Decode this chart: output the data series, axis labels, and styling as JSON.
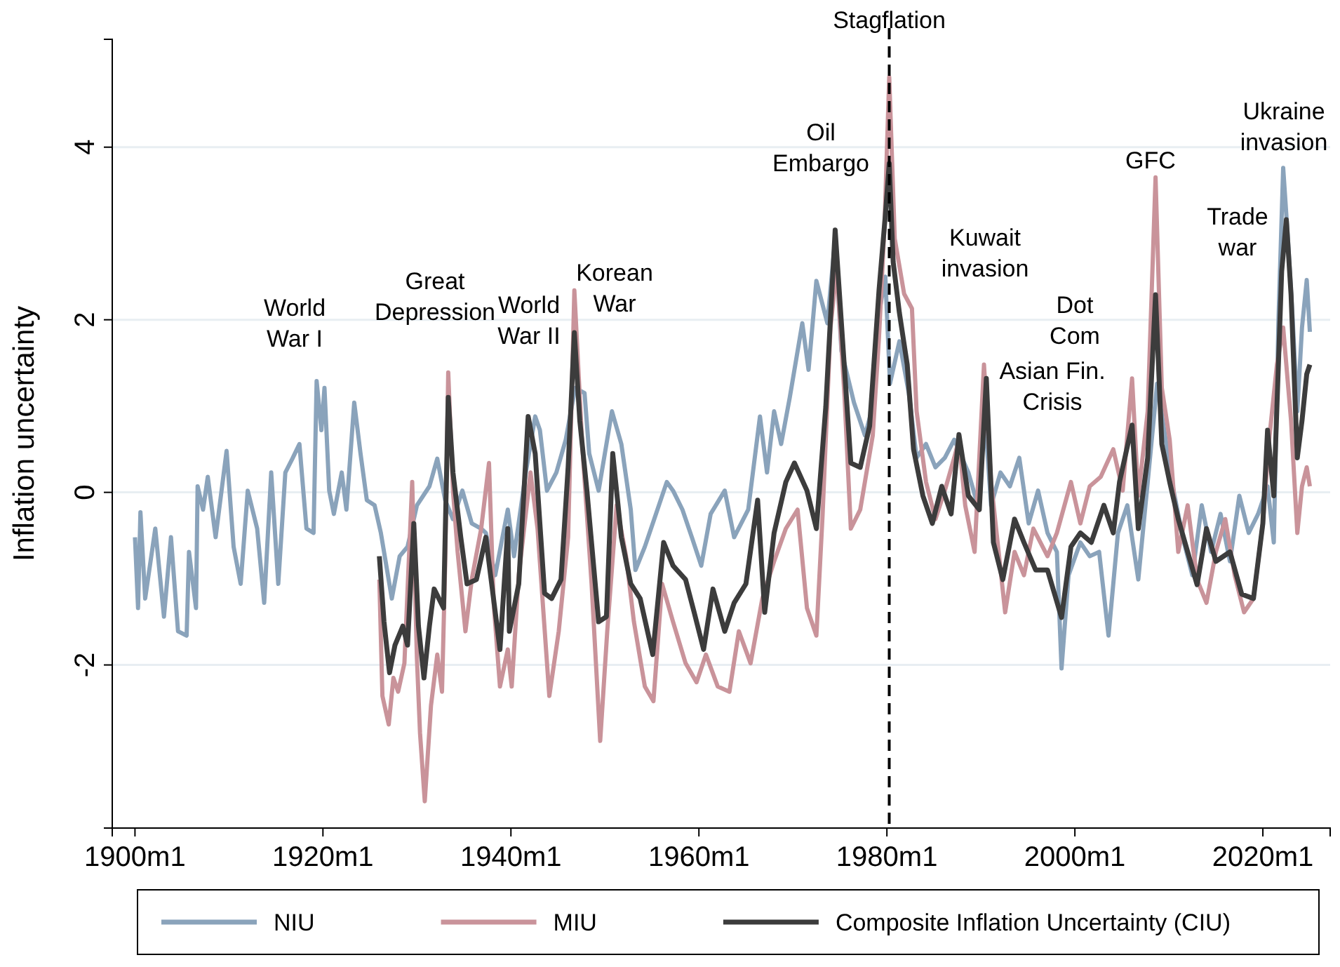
{
  "chart_data": {
    "type": "line",
    "ylabel": "Inflation uncertainty",
    "xlim": [
      "1897-08",
      "2027-03"
    ],
    "ylim": [
      -3.89,
      5.25
    ],
    "xticks": [
      {
        "value": "1900-01",
        "label": "1900m1"
      },
      {
        "value": "1920-01",
        "label": "1920m1"
      },
      {
        "value": "1940-01",
        "label": "1940m1"
      },
      {
        "value": "1960-01",
        "label": "1960m1"
      },
      {
        "value": "1980-01",
        "label": "1980m1"
      },
      {
        "value": "2000-01",
        "label": "2000m1"
      },
      {
        "value": "2020-01",
        "label": "2020m1"
      }
    ],
    "yticks": [
      -2,
      0,
      2,
      4
    ],
    "grid": "y",
    "legend": "bottom",
    "line_style": "solid",
    "marker": "none",
    "ref_lines": [
      {
        "axis": "x",
        "value": "1980-04",
        "label": "Stagflation",
        "color": "#000000",
        "line_style": "dashed"
      }
    ],
    "annotations": [
      "World\nWar I",
      "Great\nDepression",
      "World\nWar II",
      "Korean\nWar",
      "Oil\nEmbargo",
      "Kuwait\ninvasion",
      "Dot\nCom",
      "Asian Fin.\nCrisis",
      "GFC",
      "Trade\nwar",
      "Ukraine\ninvasion"
    ],
    "series": [
      {
        "name": "NIU",
        "color": "#8aa3bb",
        "x": [
          "1900-01",
          "1900-05",
          "1900-08",
          "1901-02",
          "1902-03",
          "1903-02",
          "1903-11",
          "1904-08",
          "1905-07",
          "1905-10",
          "1906-07",
          "1906-09",
          "1907-04",
          "1907-10",
          "1908-08",
          "1909-10",
          "1910-07",
          "1911-04",
          "1912-01",
          "1913-01",
          "1913-10",
          "1914-07",
          "1915-04",
          "1916-01",
          "1916-10",
          "1917-07",
          "1918-04",
          "1919-01",
          "1919-05",
          "1919-11",
          "1920-03",
          "1920-09",
          "1921-03",
          "1922-01",
          "1922-07",
          "1923-05",
          "1924-01",
          "1924-09",
          "1925-07",
          "1926-03",
          "1927-05",
          "1928-03",
          "1929-01",
          "1930-01",
          "1931-05",
          "1932-03",
          "1933-01",
          "1933-11",
          "1934-11",
          "1935-11",
          "1936-11",
          "1937-05",
          "1938-05",
          "1939-09",
          "1940-05",
          "1941-08",
          "1942-08",
          "1943-02",
          "1943-11",
          "1944-11",
          "1945-11",
          "1946-11",
          "1947-11",
          "1948-05",
          "1949-05",
          "1950-10",
          "1951-10",
          "1952-10",
          "1953-04",
          "1954-04",
          "1955-04",
          "1956-08",
          "1957-04",
          "1958-04",
          "1959-04",
          "1960-04",
          "1961-04",
          "1962-10",
          "1963-10",
          "1965-04",
          "1966-07",
          "1967-04",
          "1968-01",
          "1968-10",
          "1969-09",
          "1971-01",
          "1971-09",
          "1972-07",
          "1973-09",
          "1974-07",
          "1975-03",
          "1976-07",
          "1977-09",
          "1978-07",
          "1979-03",
          "1979-11",
          "1980-05",
          "1981-05",
          "1982-05",
          "1983-03",
          "1984-03",
          "1985-03",
          "1986-03",
          "1987-03",
          "1988-09",
          "1989-09",
          "1990-05",
          "1991-02",
          "1992-02",
          "1993-02",
          "1994-02",
          "1995-02",
          "1996-02",
          "1997-02",
          "1998-02",
          "1998-08",
          "1999-05",
          "2000-08",
          "2001-08",
          "2002-08",
          "2003-08",
          "2004-08",
          "2005-08",
          "2006-10",
          "2007-10",
          "2008-10",
          "2009-08",
          "2010-07",
          "2011-07",
          "2012-07",
          "2013-07",
          "2014-07",
          "2015-07",
          "2016-07",
          "2017-07",
          "2018-07",
          "2019-07",
          "2020-07",
          "2021-03",
          "2021-09",
          "2022-03",
          "2022-09",
          "2023-03",
          "2023-09",
          "2024-03",
          "2024-09",
          "2025-01"
        ],
        "values": [
          -0.52,
          -1.34,
          -0.23,
          -1.23,
          -0.42,
          -1.44,
          -0.52,
          -1.61,
          -1.66,
          -0.69,
          -1.34,
          0.07,
          -0.2,
          0.18,
          -0.52,
          0.48,
          -0.63,
          -1.06,
          0.02,
          -0.42,
          -1.28,
          0.23,
          -1.06,
          0.23,
          0.39,
          0.56,
          -0.42,
          -0.47,
          1.29,
          0.72,
          1.21,
          0.02,
          -0.25,
          0.23,
          -0.2,
          1.04,
          0.45,
          -0.09,
          -0.15,
          -0.47,
          -1.23,
          -0.74,
          -0.63,
          -0.15,
          0.07,
          0.39,
          -0.09,
          -0.31,
          0.02,
          -0.36,
          -0.42,
          -0.47,
          -0.96,
          -0.2,
          -0.74,
          0.23,
          0.88,
          0.72,
          0.02,
          0.23,
          0.61,
          1.21,
          1.15,
          0.45,
          0.02,
          0.94,
          0.56,
          -0.2,
          -0.9,
          -0.63,
          -0.31,
          0.12,
          0.02,
          -0.2,
          -0.52,
          -0.85,
          -0.25,
          0.02,
          -0.52,
          -0.2,
          0.88,
          0.23,
          0.94,
          0.56,
          1.1,
          1.96,
          1.42,
          2.45,
          1.96,
          2.94,
          1.64,
          1.04,
          0.66,
          0.99,
          2.07,
          2.5,
          1.26,
          1.75,
          1.15,
          0.4,
          0.56,
          0.29,
          0.4,
          0.61,
          0.23,
          -0.15,
          1.05,
          -0.15,
          0.23,
          0.07,
          0.4,
          -0.36,
          0.02,
          -0.47,
          -0.69,
          -2.04,
          -0.96,
          -0.58,
          -0.74,
          -0.69,
          -1.66,
          -0.47,
          -0.15,
          -1.01,
          0.12,
          1.26,
          0.67,
          0.02,
          -0.53,
          -0.96,
          -0.15,
          -0.69,
          -0.25,
          -0.8,
          -0.04,
          -0.47,
          -0.25,
          0.07,
          -0.58,
          2.02,
          3.76,
          2.94,
          2.02,
          0.94,
          1.91,
          2.46,
          1.86
        ]
      },
      {
        "name": "MIU",
        "color": "#c9939a",
        "x": [
          "1926-01",
          "1926-05",
          "1927-01",
          "1927-07",
          "1928-01",
          "1928-09",
          "1929-07",
          "1930-01",
          "1930-05",
          "1930-11",
          "1931-07",
          "1932-03",
          "1932-09",
          "1933-01",
          "1933-05",
          "1933-11",
          "1934-05",
          "1935-03",
          "1935-11",
          "1936-11",
          "1937-09",
          "1938-03",
          "1938-11",
          "1939-09",
          "1940-02",
          "1940-11",
          "1942-02",
          "1942-11",
          "1944-02",
          "1945-02",
          "1946-02",
          "1946-10",
          "1947-08",
          "1948-08",
          "1949-07",
          "1950-04",
          "1951-04",
          "1952-04",
          "1953-02",
          "1954-04",
          "1955-03",
          "1956-02",
          "1957-04",
          "1958-08",
          "1959-10",
          "1960-10",
          "1962-01",
          "1963-04",
          "1964-04",
          "1965-07",
          "1966-10",
          "1968-01",
          "1969-04",
          "1970-07",
          "1971-07",
          "1972-07",
          "1973-03",
          "1974-01",
          "1974-09",
          "1975-07",
          "1976-03",
          "1977-03",
          "1978-07",
          "1979-03",
          "1979-10",
          "1980-04",
          "1980-11",
          "1981-11",
          "1982-09",
          "1983-03",
          "1984-03",
          "1985-03",
          "1986-03",
          "1987-03",
          "1987-09",
          "1988-05",
          "1989-05",
          "1990-05",
          "1991-02",
          "1992-08",
          "1993-08",
          "1994-08",
          "1995-08",
          "1997-02",
          "1998-02",
          "1999-08",
          "2000-08",
          "2001-08",
          "2002-10",
          "2004-02",
          "2005-02",
          "2006-02",
          "2006-10",
          "2007-10",
          "2008-08",
          "2009-04",
          "2010-02",
          "2011-01",
          "2012-01",
          "2013-01",
          "2014-01",
          "2015-01",
          "2016-01",
          "2017-01",
          "2018-01",
          "2019-01",
          "2020-01",
          "2020-09",
          "2021-07",
          "2022-03",
          "2023-01",
          "2023-09",
          "2024-03",
          "2024-09",
          "2025-01"
        ],
        "values": [
          -1.01,
          -2.36,
          -2.69,
          -2.15,
          -2.31,
          -1.98,
          0.12,
          -1.93,
          -2.79,
          -3.58,
          -2.47,
          -1.88,
          -2.31,
          -0.85,
          1.39,
          0.02,
          -0.69,
          -1.61,
          -1.01,
          -0.42,
          0.34,
          -1.28,
          -2.25,
          -1.82,
          -2.25,
          -0.96,
          0.23,
          -0.42,
          -2.36,
          -1.61,
          -0.52,
          2.34,
          0.56,
          -1.06,
          -2.88,
          -1.61,
          -0.15,
          -0.74,
          -1.5,
          -2.25,
          -2.42,
          -1.06,
          -1.5,
          -1.98,
          -2.2,
          -1.88,
          -2.25,
          -2.31,
          -1.61,
          -1.98,
          -1.23,
          -0.8,
          -0.42,
          -0.2,
          -1.34,
          -1.66,
          -0.25,
          1.91,
          2.61,
          1.1,
          -0.42,
          -0.2,
          0.66,
          1.8,
          3.1,
          4.81,
          2.94,
          2.3,
          2.13,
          0.94,
          0.12,
          -0.31,
          0.02,
          0.4,
          0.61,
          -0.15,
          -0.69,
          1.48,
          0.12,
          -1.39,
          -0.69,
          -0.96,
          -0.42,
          -0.74,
          -0.47,
          0.12,
          -0.36,
          0.07,
          0.18,
          0.5,
          0.02,
          1.32,
          -0.04,
          0.94,
          3.65,
          1.21,
          0.61,
          -0.69,
          -0.15,
          -1.01,
          -1.28,
          -0.69,
          -0.31,
          -0.96,
          -1.39,
          -1.23,
          -0.36,
          0.61,
          1.48,
          1.91,
          0.83,
          -0.47,
          0.07,
          0.29,
          0.07
        ]
      },
      {
        "name": "Composite Inflation Uncertainty (CIU)",
        "color": "#3c3c3c",
        "x": [
          "1926-01",
          "1926-07",
          "1927-02",
          "1927-09",
          "1928-07",
          "1929-01",
          "1929-09",
          "1930-03",
          "1930-10",
          "1931-05",
          "1931-11",
          "1932-11",
          "1933-05",
          "1933-11",
          "1934-09",
          "1935-05",
          "1936-05",
          "1937-05",
          "1937-11",
          "1938-11",
          "1939-09",
          "1939-11",
          "1940-11",
          "1941-11",
          "1942-08",
          "1943-08",
          "1944-05",
          "1945-05",
          "1946-02",
          "1946-10",
          "1947-05",
          "1948-02",
          "1949-05",
          "1950-03",
          "1950-11",
          "1951-10",
          "1952-10",
          "1953-10",
          "1955-02",
          "1956-04",
          "1957-04",
          "1958-08",
          "1959-07",
          "1960-07",
          "1961-07",
          "1962-10",
          "1963-10",
          "1965-01",
          "1966-04",
          "1967-01",
          "1968-01",
          "1969-04",
          "1970-03",
          "1971-07",
          "1972-07",
          "1973-07",
          "1974-07",
          "1975-07",
          "1976-03",
          "1977-03",
          "1978-03",
          "1979-03",
          "1979-11",
          "1980-04",
          "1980-09",
          "1981-05",
          "1982-03",
          "1982-11",
          "1983-11",
          "1984-11",
          "1985-11",
          "1986-11",
          "1987-09",
          "1988-09",
          "1989-11",
          "1990-08",
          "1991-05",
          "1992-05",
          "1993-08",
          "1994-08",
          "1995-11",
          "1997-02",
          "1998-08",
          "1999-08",
          "2000-08",
          "2001-10",
          "2003-02",
          "2004-02",
          "2004-10",
          "2006-02",
          "2006-10",
          "2007-10",
          "2008-08",
          "2009-04",
          "2010-02",
          "2011-01",
          "2012-01",
          "2013-01",
          "2014-01",
          "2015-01",
          "2016-07",
          "2017-10",
          "2019-01",
          "2020-01",
          "2020-07",
          "2021-03",
          "2022-01",
          "2022-07",
          "2023-01",
          "2023-09",
          "2024-03",
          "2024-09",
          "2025-01"
        ],
        "values": [
          -0.74,
          -1.5,
          -2.09,
          -1.77,
          -1.55,
          -1.77,
          -0.36,
          -1.55,
          -2.15,
          -1.55,
          -1.12,
          -1.34,
          1.1,
          0.23,
          -0.52,
          -1.06,
          -1.01,
          -0.52,
          -0.96,
          -1.82,
          -0.42,
          -1.61,
          -1.06,
          0.88,
          0.45,
          -1.17,
          -1.23,
          -1.01,
          0.29,
          1.85,
          0.83,
          0.02,
          -1.5,
          -1.44,
          0.45,
          -0.52,
          -1.06,
          -1.23,
          -1.88,
          -0.58,
          -0.85,
          -1.01,
          -1.39,
          -1.82,
          -1.12,
          -1.61,
          -1.28,
          -1.06,
          -0.09,
          -1.39,
          -0.47,
          0.12,
          0.34,
          0.02,
          -0.42,
          0.99,
          3.04,
          1.42,
          0.34,
          0.29,
          0.77,
          2.34,
          3.21,
          3.81,
          2.67,
          2.08,
          1.48,
          0.5,
          -0.04,
          -0.36,
          0.07,
          -0.25,
          0.67,
          -0.04,
          -0.2,
          1.32,
          -0.58,
          -1.01,
          -0.31,
          -0.58,
          -0.9,
          -0.9,
          -1.45,
          -0.63,
          -0.47,
          -0.58,
          -0.15,
          -0.47,
          0.12,
          0.78,
          -0.42,
          0.4,
          2.29,
          0.56,
          0.12,
          -0.31,
          -0.69,
          -1.07,
          -0.42,
          -0.8,
          -0.69,
          -1.18,
          -1.23,
          -0.36,
          0.72,
          -0.04,
          2.56,
          3.16,
          2.29,
          0.4,
          0.83,
          1.37,
          1.48
        ]
      }
    ]
  }
}
